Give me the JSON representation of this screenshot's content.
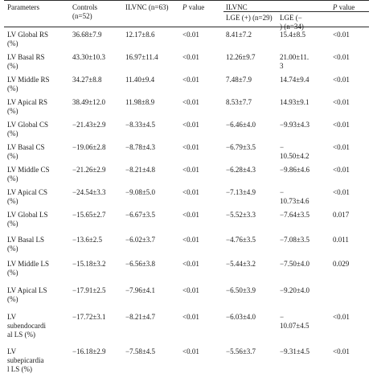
{
  "headers": {
    "parameters": "Parameters",
    "controls": "Controls\n(n=52)",
    "ilvnc_all": "ILVNC (n=63)",
    "p_value": "P",
    "p_value_suffix": " value",
    "ilvnc_group": "ILVNC",
    "lge_pos": "LGE (+) (n=29)",
    "lge_neg": "LGE (−\n) (n=34)",
    "p_value2": "P",
    "p_value2_suffix": " value"
  },
  "rows": [
    {
      "param": "LV Global RS\n(%)",
      "controls": "36.68±7.9",
      "ilvnc": "12.17±8.6",
      "p1": "<0.01",
      "lge_pos": "8.41±7.2",
      "lge_neg": "15.4±8.5",
      "p2": "<0.01"
    },
    {
      "param": "LV Basal RS\n(%)",
      "controls": "43.30±10.3",
      "ilvnc": "16.97±11.4",
      "p1": "<0.01",
      "lge_pos": "12.26±9.7",
      "lge_neg": "21.00±11.\n3",
      "p2": "<0.01"
    },
    {
      "param": "LV Middle RS\n(%)",
      "controls": "34.27±8.8",
      "ilvnc": "11.40±9.4",
      "p1": "<0.01",
      "lge_pos": "7.48±7.9",
      "lge_neg": "14.74±9.4",
      "p2": "<0.01"
    },
    {
      "param": "LV Apical RS\n(%)",
      "controls": "38.49±12.0",
      "ilvnc": "11.98±8.9",
      "p1": "<0.01",
      "lge_pos": "8.53±7.7",
      "lge_neg": "14.93±9.1",
      "p2": "<0.01"
    },
    {
      "param": "LV Global CS\n(%)",
      "controls": "−21.43±2.9",
      "ilvnc": "−8.33±4.5",
      "p1": "<0.01",
      "lge_pos": "−6.46±4.0",
      "lge_neg": "−9.93±4.3",
      "p2": "<0.01"
    },
    {
      "param": "LV Basal CS\n(%)",
      "controls": "−19.06±2.8",
      "ilvnc": "−8.78±4.3",
      "p1": "<0.01",
      "lge_pos": "−6.79±3.5",
      "lge_neg": "−\n10.50±4.2",
      "p2": "<0.01"
    },
    {
      "param": "LV Middle CS\n(%)",
      "controls": "−21.26±2.9",
      "ilvnc": "−8.21±4.8",
      "p1": "<0.01",
      "lge_pos": "−6.28±4.3",
      "lge_neg": "−9.86±4.6",
      "p2": "<0.01"
    },
    {
      "param": "LV Apical CS\n(%)",
      "controls": "−24.54±3.3",
      "ilvnc": "−9.08±5.0",
      "p1": "<0.01",
      "lge_pos": "−7.13±4.9",
      "lge_neg": "−\n10.73±4.6",
      "p2": "<0.01"
    },
    {
      "param": "LV Global LS\n(%)",
      "controls": "−15.65±2.7",
      "ilvnc": "−6.67±3.5",
      "p1": "<0.01",
      "lge_pos": "−5.52±3.3",
      "lge_neg": "−7.64±3.5",
      "p2": "0.017"
    },
    {
      "param": "LV Basal LS\n(%)",
      "controls": "−13.6±2.5",
      "ilvnc": "−6.02±3.7",
      "p1": "<0.01",
      "lge_pos": "−4.76±3.5",
      "lge_neg": "−7.08±3.5",
      "p2": "0.011"
    },
    {
      "param": "LV Middle LS\n(%)",
      "controls": "−15.18±3.2",
      "ilvnc": "−6.56±3.8",
      "p1": "<0.01",
      "lge_pos": "−5.44±3.2",
      "lge_neg": "−7.50±4.0",
      "p2": "0.029"
    },
    {
      "param": "LV Apical LS\n(%)",
      "controls": "−17.91±2.5",
      "ilvnc": "−7.96±4.1",
      "p1": "<0.01",
      "lge_pos": "−6.50±3.9",
      "lge_neg": "−9.20±4.0",
      "p2": ""
    },
    {
      "param": "LV\nsubendocardi\nal LS (%)",
      "controls": "−17.72±3.1",
      "ilvnc": "−8.21±4.7",
      "p1": "<0.01",
      "lge_pos": "−6.03±4.0",
      "lge_neg": "−\n10.07±4.5",
      "p2": "<0.01"
    },
    {
      "param": "LV\nsubepicardia\nl LS (%)",
      "controls": "−16.18±2.9",
      "ilvnc": "−7.58±4.5",
      "p1": "<0.01",
      "lge_pos": "−5.56±3.7",
      "lge_neg": "−9.31±4.5",
      "p2": "<0.01"
    }
  ]
}
